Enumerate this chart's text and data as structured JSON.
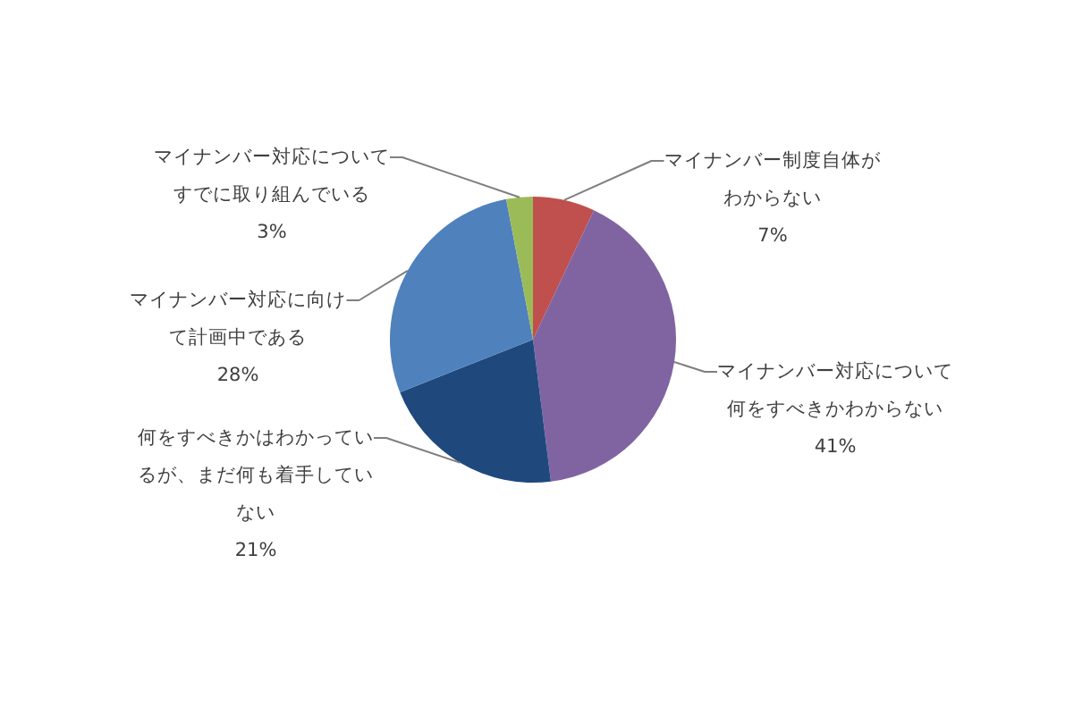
{
  "chart_data": {
    "type": "pie",
    "categories": [
      "マイナンバー制度自体がわからない",
      "マイナンバー対応について何をすべきかわからない",
      "何をすべきかはわかっているが、まだ何も着手していない",
      "マイナンバー対応に向けて計画中である",
      "マイナンバー対応についてすでに取り組んでいる"
    ],
    "values": [
      7,
      41,
      21,
      28,
      3
    ],
    "colors": [
      "#c0504d",
      "#8064a2",
      "#1f497d",
      "#4f81bd",
      "#9bbb59"
    ],
    "value_labels": [
      "7%",
      "41%",
      "21%",
      "28%",
      "3%"
    ]
  }
}
